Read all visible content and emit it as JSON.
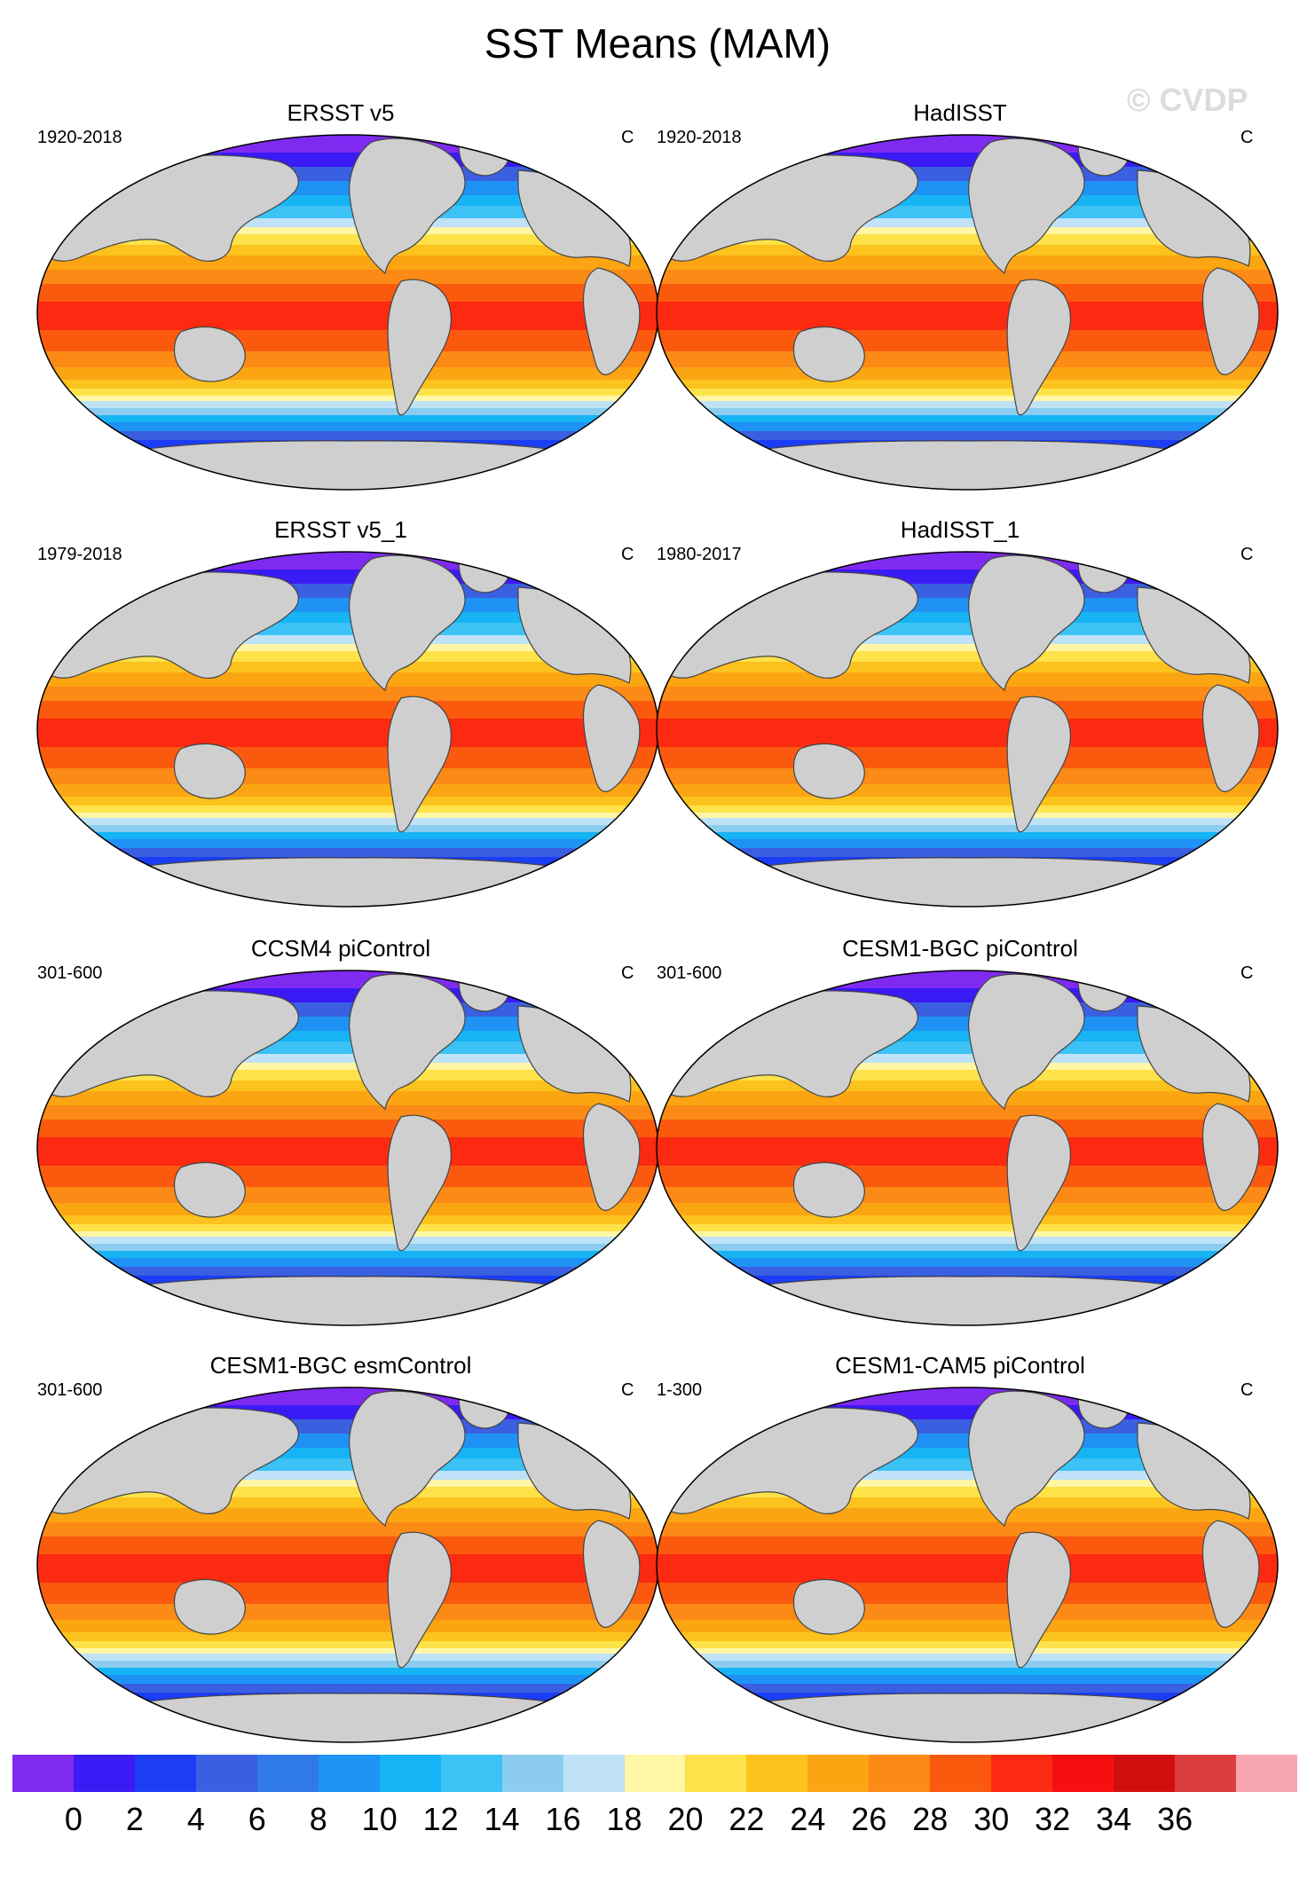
{
  "title": "SST Means (MAM)",
  "watermark": "© CVDP",
  "panels": [
    {
      "title": "ERSST v5",
      "period": "1920-2018",
      "unit": "C"
    },
    {
      "title": "HadISST",
      "period": "1920-2018",
      "unit": "C"
    },
    {
      "title": "ERSST v5_1",
      "period": "1979-2018",
      "unit": "C"
    },
    {
      "title": "HadISST_1",
      "period": "1980-2017",
      "unit": "C"
    },
    {
      "title": "CCSM4 piControl",
      "period": "301-600",
      "unit": "C"
    },
    {
      "title": "CESM1-BGC piControl",
      "period": "301-600",
      "unit": "C"
    },
    {
      "title": "CESM1-BGC esmControl",
      "period": "301-600",
      "unit": "C"
    },
    {
      "title": "CESM1-CAM5 piControl",
      "period": "1-300",
      "unit": "C"
    }
  ],
  "colorbar": {
    "colors": [
      "#7f2af0",
      "#3a1af5",
      "#1b3df5",
      "#3a5fe0",
      "#2f79ea",
      "#1f92f5",
      "#16b4f5",
      "#3cc2f5",
      "#8ccdef",
      "#bfe2f7",
      "#fff6a6",
      "#fde24a",
      "#fcc21d",
      "#fca512",
      "#fb8a16",
      "#fb5a0e",
      "#fc2a10",
      "#f50f10",
      "#d10e0e",
      "#dc3c3c",
      "#f7a6b0"
    ],
    "labels": [
      "0",
      "2",
      "4",
      "6",
      "8",
      "10",
      "12",
      "14",
      "16",
      "18",
      "20",
      "22",
      "24",
      "26",
      "28",
      "30",
      "32",
      "34",
      "36"
    ]
  }
}
